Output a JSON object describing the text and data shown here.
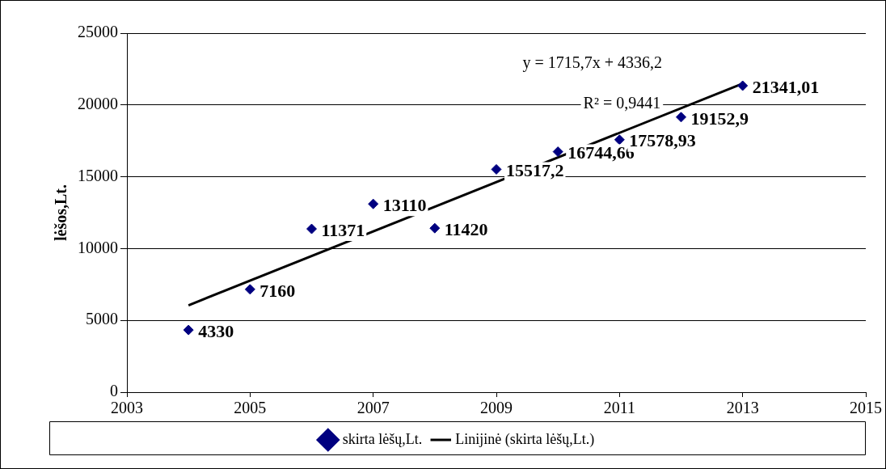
{
  "chart_data": {
    "type": "scatter",
    "ylabel": "lėšos,Lt.",
    "x": [
      2004,
      2005,
      2006,
      2007,
      2008,
      2009,
      2010,
      2011,
      2012,
      2013
    ],
    "series": [
      {
        "name": "skirta lėšų,Lt.",
        "color": "#000080",
        "marker": "diamond",
        "values": [
          4330,
          7160,
          11371,
          13110,
          11420,
          15517.2,
          16744.66,
          17578.93,
          19152.9,
          21341.01
        ],
        "value_labels": [
          "4330",
          "7160",
          "11371",
          "13110",
          "11420",
          "15517,2",
          "16744,66",
          "17578,93",
          "19152,9",
          "21341,01"
        ]
      },
      {
        "name": "Linijinė (skirta lėšų,Lt.)",
        "type": "line",
        "color": "#000000",
        "marker": "none",
        "line_style": "solid",
        "x": [
          2004,
          2013
        ],
        "values": [
          6050,
          21490
        ]
      }
    ],
    "annotations": [
      "y = 1715,7x + 4336,2",
      "R² = 0,9441"
    ],
    "xlim": [
      2003,
      2015
    ],
    "xticks": [
      2003,
      2005,
      2007,
      2009,
      2011,
      2013,
      2015
    ],
    "ylim": [
      0,
      25000
    ],
    "yticks": [
      0,
      5000,
      10000,
      15000,
      20000,
      25000
    ],
    "grid": "y",
    "legend": "bottom"
  }
}
